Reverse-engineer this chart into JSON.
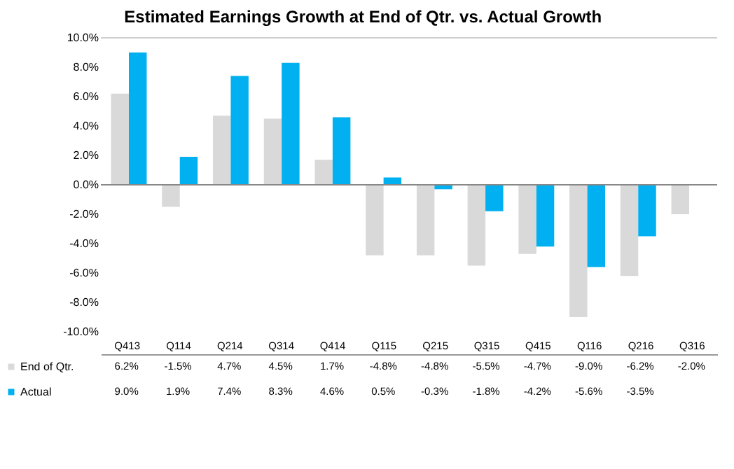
{
  "chart_data": {
    "type": "bar",
    "title": "Estimated Earnings Growth at End of Qtr. vs. Actual Growth",
    "categories": [
      "Q413",
      "Q114",
      "Q214",
      "Q314",
      "Q414",
      "Q115",
      "Q215",
      "Q315",
      "Q415",
      "Q116",
      "Q216",
      "Q316"
    ],
    "series": [
      {
        "name": "End of Qtr.",
        "color": "#d9d9d9",
        "values": [
          6.2,
          -1.5,
          4.7,
          4.5,
          1.7,
          -4.8,
          -4.8,
          -5.5,
          -4.7,
          -9.0,
          -6.2,
          -2.0
        ],
        "value_labels": [
          "6.2%",
          "-1.5%",
          "4.7%",
          "4.5%",
          "1.7%",
          "-4.8%",
          "-4.8%",
          "-5.5%",
          "-4.7%",
          "-9.0%",
          "-6.2%",
          "-2.0%"
        ]
      },
      {
        "name": "Actual",
        "color": "#00b0f0",
        "values": [
          9.0,
          1.9,
          7.4,
          8.3,
          4.6,
          0.5,
          -0.3,
          -1.8,
          -4.2,
          -5.6,
          -3.5,
          null
        ],
        "value_labels": [
          "9.0%",
          "1.9%",
          "7.4%",
          "8.3%",
          "4.6%",
          "0.5%",
          "-0.3%",
          "-1.8%",
          "-4.2%",
          "-5.6%",
          "-3.5%",
          null
        ]
      }
    ],
    "ylim": [
      -10,
      10
    ],
    "yticks": [
      {
        "value": -10,
        "label": "-10.0%"
      },
      {
        "value": -8,
        "label": "-8.0%"
      },
      {
        "value": -6,
        "label": "-6.0%"
      },
      {
        "value": -4,
        "label": "-4.0%"
      },
      {
        "value": -2,
        "label": "-2.0%"
      },
      {
        "value": 0,
        "label": "0.0%"
      },
      {
        "value": 2,
        "label": "2.0%"
      },
      {
        "value": 4,
        "label": "4.0%"
      },
      {
        "value": 6,
        "label": "6.0%"
      },
      {
        "value": 8,
        "label": "8.0%"
      },
      {
        "value": 10,
        "label": "10.0%"
      }
    ],
    "legend": "bottom"
  }
}
